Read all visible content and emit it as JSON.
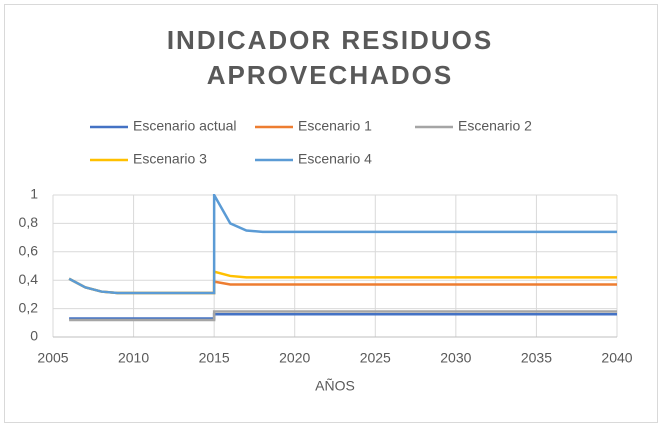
{
  "chart_data": {
    "type": "line",
    "title": "INDICADOR RESIDUOS",
    "subtitle": "APROVECHADOS",
    "x_label": "AÑOS",
    "x": [
      2006,
      2007,
      2008,
      2009,
      2010,
      2012,
      2015,
      2015,
      2016,
      2017,
      2018,
      2020,
      2025,
      2030,
      2035,
      2040
    ],
    "series": [
      {
        "name": "Escenario actual",
        "color": "#4472c4",
        "values": [
          0.13,
          0.13,
          0.13,
          0.13,
          0.13,
          0.13,
          0.13,
          0.16,
          0.16,
          0.16,
          0.16,
          0.16,
          0.16,
          0.16,
          0.16,
          0.16
        ]
      },
      {
        "name": "Escenario 1",
        "color": "#ed7d31",
        "values": [
          0.41,
          0.35,
          0.32,
          0.31,
          0.31,
          0.31,
          0.31,
          0.39,
          0.37,
          0.37,
          0.37,
          0.37,
          0.37,
          0.37,
          0.37,
          0.37
        ]
      },
      {
        "name": "Escenario 2",
        "color": "#a5a5a5",
        "values": [
          0.12,
          0.12,
          0.12,
          0.12,
          0.12,
          0.12,
          0.12,
          0.18,
          0.18,
          0.18,
          0.18,
          0.18,
          0.18,
          0.18,
          0.18,
          0.18
        ]
      },
      {
        "name": "Escenario 3",
        "color": "#ffc000",
        "values": [
          0.41,
          0.35,
          0.32,
          0.31,
          0.31,
          0.31,
          0.31,
          0.46,
          0.43,
          0.42,
          0.42,
          0.42,
          0.42,
          0.42,
          0.42,
          0.42
        ]
      },
      {
        "name": "Escenario 4",
        "color": "#5b9bd5",
        "values": [
          0.41,
          0.35,
          0.32,
          0.31,
          0.31,
          0.31,
          0.31,
          1,
          0.8,
          0.75,
          0.74,
          0.74,
          0.74,
          0.74,
          0.74,
          0.74
        ]
      }
    ],
    "xlim": [
      2005,
      2040
    ],
    "xticks": [
      2005,
      2010,
      2015,
      2020,
      2025,
      2030,
      2035,
      2040
    ],
    "ylim": [
      0,
      1
    ],
    "yticks": [
      0,
      {
        "value": 0.2,
        "label": "0,2"
      },
      {
        "value": 0.4,
        "label": "0,4"
      },
      {
        "value": 0.6,
        "label": "0,6"
      },
      {
        "value": 0.8,
        "label": "0,8"
      },
      1
    ],
    "grid": true
  }
}
